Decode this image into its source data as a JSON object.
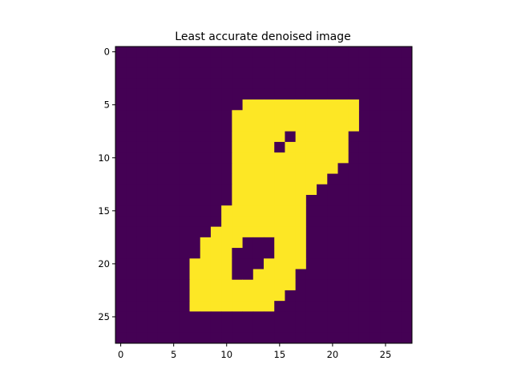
{
  "chart_data": {
    "type": "heatmap",
    "title": "Least accurate denoised image",
    "xlabel": "",
    "ylabel": "",
    "grid": false,
    "legend": "none",
    "xlim": [
      -0.5,
      27.5
    ],
    "ylim": [
      27.5,
      -0.5
    ],
    "xticks": [
      0,
      5,
      10,
      15,
      20,
      25
    ],
    "yticks": [
      0,
      5,
      10,
      15,
      20,
      25
    ],
    "colormap": "viridis",
    "color_low": "#440154",
    "color_high": "#fde725",
    "rows": 28,
    "cols": 28,
    "values": [
      [
        0,
        0,
        0,
        0,
        0,
        0,
        0,
        0,
        0,
        0,
        0,
        0,
        0,
        0,
        0,
        0,
        0,
        0,
        0,
        0,
        0,
        0,
        0,
        0,
        0,
        0,
        0,
        0
      ],
      [
        0,
        0,
        0,
        0,
        0,
        0,
        0,
        0,
        0,
        0,
        0,
        0,
        0,
        0,
        0,
        0,
        0,
        0,
        0,
        0,
        0,
        0,
        0,
        0,
        0,
        0,
        0,
        0
      ],
      [
        0,
        0,
        0,
        0,
        0,
        0,
        0,
        0,
        0,
        0,
        0,
        0,
        0,
        0,
        0,
        0,
        0,
        0,
        0,
        0,
        0,
        0,
        0,
        0,
        0,
        0,
        0,
        0
      ],
      [
        0,
        0,
        0,
        0,
        0,
        0,
        0,
        0,
        0,
        0,
        0,
        0,
        0,
        0,
        0,
        0,
        0,
        0,
        0,
        0,
        0,
        0,
        0,
        0,
        0,
        0,
        0,
        0
      ],
      [
        0,
        0,
        0,
        0,
        0,
        0,
        0,
        0,
        0,
        0,
        0,
        0,
        0,
        0,
        0,
        0,
        0,
        0,
        0,
        0,
        0,
        0,
        0,
        0,
        0,
        0,
        0,
        0
      ],
      [
        0,
        0,
        0,
        0,
        0,
        0,
        0,
        0,
        0,
        0,
        0,
        0,
        1,
        1,
        1,
        1,
        1,
        1,
        1,
        1,
        1,
        1,
        1,
        0,
        0,
        0,
        0,
        0
      ],
      [
        0,
        0,
        0,
        0,
        0,
        0,
        0,
        0,
        0,
        0,
        0,
        1,
        1,
        1,
        1,
        1,
        1,
        1,
        1,
        1,
        1,
        1,
        1,
        0,
        0,
        0,
        0,
        0
      ],
      [
        0,
        0,
        0,
        0,
        0,
        0,
        0,
        0,
        0,
        0,
        0,
        1,
        1,
        1,
        1,
        1,
        1,
        1,
        1,
        1,
        1,
        1,
        1,
        0,
        0,
        0,
        0,
        0
      ],
      [
        0,
        0,
        0,
        0,
        0,
        0,
        0,
        0,
        0,
        0,
        0,
        1,
        1,
        1,
        1,
        1,
        0,
        1,
        1,
        1,
        1,
        1,
        0,
        0,
        0,
        0,
        0,
        0
      ],
      [
        0,
        0,
        0,
        0,
        0,
        0,
        0,
        0,
        0,
        0,
        0,
        1,
        1,
        1,
        1,
        0,
        1,
        1,
        1,
        1,
        1,
        1,
        0,
        0,
        0,
        0,
        0,
        0
      ],
      [
        0,
        0,
        0,
        0,
        0,
        0,
        0,
        0,
        0,
        0,
        0,
        1,
        1,
        1,
        1,
        1,
        1,
        1,
        1,
        1,
        1,
        1,
        0,
        0,
        0,
        0,
        0,
        0
      ],
      [
        0,
        0,
        0,
        0,
        0,
        0,
        0,
        0,
        0,
        0,
        0,
        1,
        1,
        1,
        1,
        1,
        1,
        1,
        1,
        1,
        1,
        0,
        0,
        0,
        0,
        0,
        0,
        0
      ],
      [
        0,
        0,
        0,
        0,
        0,
        0,
        0,
        0,
        0,
        0,
        0,
        1,
        1,
        1,
        1,
        1,
        1,
        1,
        1,
        1,
        0,
        0,
        0,
        0,
        0,
        0,
        0,
        0
      ],
      [
        0,
        0,
        0,
        0,
        0,
        0,
        0,
        0,
        0,
        0,
        0,
        1,
        1,
        1,
        1,
        1,
        1,
        1,
        1,
        0,
        0,
        0,
        0,
        0,
        0,
        0,
        0,
        0
      ],
      [
        0,
        0,
        0,
        0,
        0,
        0,
        0,
        0,
        0,
        0,
        0,
        1,
        1,
        1,
        1,
        1,
        1,
        1,
        0,
        0,
        0,
        0,
        0,
        0,
        0,
        0,
        0,
        0
      ],
      [
        0,
        0,
        0,
        0,
        0,
        0,
        0,
        0,
        0,
        0,
        1,
        1,
        1,
        1,
        1,
        1,
        1,
        1,
        0,
        0,
        0,
        0,
        0,
        0,
        0,
        0,
        0,
        0
      ],
      [
        0,
        0,
        0,
        0,
        0,
        0,
        0,
        0,
        0,
        0,
        1,
        1,
        1,
        1,
        1,
        1,
        1,
        1,
        0,
        0,
        0,
        0,
        0,
        0,
        0,
        0,
        0,
        0
      ],
      [
        0,
        0,
        0,
        0,
        0,
        0,
        0,
        0,
        0,
        1,
        1,
        1,
        1,
        1,
        1,
        1,
        1,
        1,
        0,
        0,
        0,
        0,
        0,
        0,
        0,
        0,
        0,
        0
      ],
      [
        0,
        0,
        0,
        0,
        0,
        0,
        0,
        0,
        1,
        1,
        1,
        1,
        0,
        0,
        0,
        1,
        1,
        1,
        0,
        0,
        0,
        0,
        0,
        0,
        0,
        0,
        0,
        0
      ],
      [
        0,
        0,
        0,
        0,
        0,
        0,
        0,
        0,
        1,
        1,
        1,
        0,
        0,
        0,
        0,
        1,
        1,
        1,
        0,
        0,
        0,
        0,
        0,
        0,
        0,
        0,
        0,
        0
      ],
      [
        0,
        0,
        0,
        0,
        0,
        0,
        0,
        1,
        1,
        1,
        1,
        0,
        0,
        0,
        1,
        1,
        1,
        1,
        0,
        0,
        0,
        0,
        0,
        0,
        0,
        0,
        0,
        0
      ],
      [
        0,
        0,
        0,
        0,
        0,
        0,
        0,
        1,
        1,
        1,
        1,
        0,
        0,
        1,
        1,
        1,
        1,
        0,
        0,
        0,
        0,
        0,
        0,
        0,
        0,
        0,
        0,
        0
      ],
      [
        0,
        0,
        0,
        0,
        0,
        0,
        0,
        1,
        1,
        1,
        1,
        1,
        1,
        1,
        1,
        1,
        1,
        0,
        0,
        0,
        0,
        0,
        0,
        0,
        0,
        0,
        0,
        0
      ],
      [
        0,
        0,
        0,
        0,
        0,
        0,
        0,
        1,
        1,
        1,
        1,
        1,
        1,
        1,
        1,
        1,
        0,
        0,
        0,
        0,
        0,
        0,
        0,
        0,
        0,
        0,
        0,
        0
      ],
      [
        0,
        0,
        0,
        0,
        0,
        0,
        0,
        1,
        1,
        1,
        1,
        1,
        1,
        1,
        1,
        0,
        0,
        0,
        0,
        0,
        0,
        0,
        0,
        0,
        0,
        0,
        0,
        0
      ],
      [
        0,
        0,
        0,
        0,
        0,
        0,
        0,
        0,
        0,
        0,
        0,
        0,
        0,
        0,
        0,
        0,
        0,
        0,
        0,
        0,
        0,
        0,
        0,
        0,
        0,
        0,
        0,
        0
      ],
      [
        0,
        0,
        0,
        0,
        0,
        0,
        0,
        0,
        0,
        0,
        0,
        0,
        0,
        0,
        0,
        0,
        0,
        0,
        0,
        0,
        0,
        0,
        0,
        0,
        0,
        0,
        0,
        0
      ],
      [
        0,
        0,
        0,
        0,
        0,
        0,
        0,
        0,
        0,
        0,
        0,
        0,
        0,
        0,
        0,
        0,
        0,
        0,
        0,
        0,
        0,
        0,
        0,
        0,
        0,
        0,
        0,
        0
      ]
    ]
  }
}
